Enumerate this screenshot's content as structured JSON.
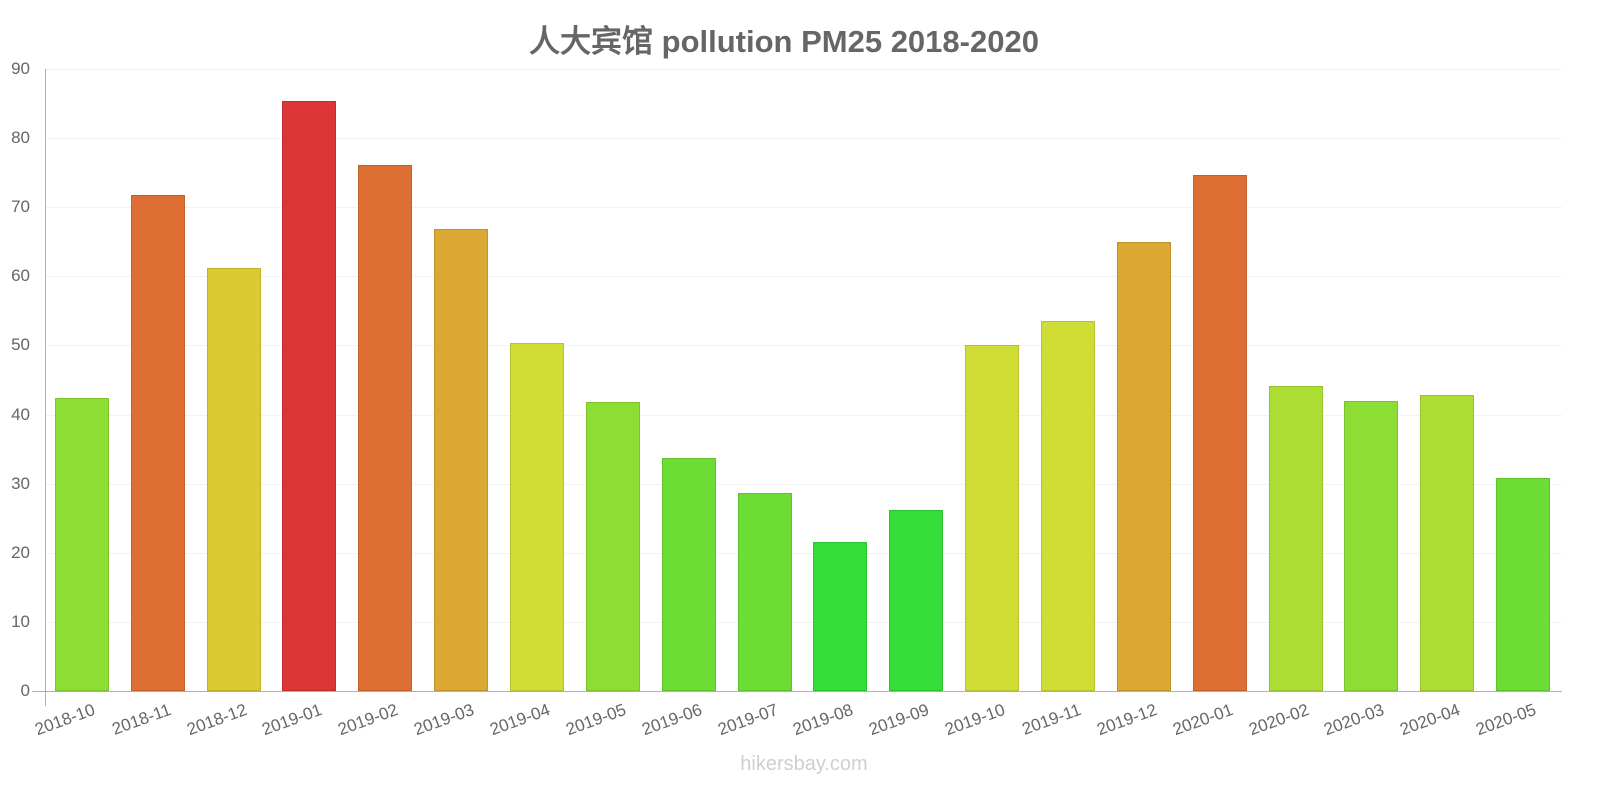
{
  "chart_data": {
    "type": "bar",
    "title": "人大宾馆 pollution PM25 2018-2020",
    "xlabel": "",
    "ylabel": "",
    "ylim": [
      0,
      90
    ],
    "yticks": [
      0,
      10,
      20,
      30,
      40,
      50,
      60,
      70,
      80,
      90
    ],
    "grid": true,
    "legend": null,
    "categories": [
      "2018-10",
      "2018-11",
      "2018-12",
      "2019-01",
      "2019-02",
      "2019-03",
      "2019-04",
      "2019-05",
      "2019-06",
      "2019-07",
      "2019-08",
      "2019-09",
      "2019-10",
      "2019-11",
      "2019-12",
      "2020-01",
      "2020-02",
      "2020-03",
      "2020-04",
      "2020-05"
    ],
    "values": [
      42.4,
      71.8,
      61.2,
      85.3,
      76.1,
      66.9,
      50.4,
      41.8,
      33.7,
      28.7,
      21.6,
      26.2,
      50.1,
      53.5,
      64.9,
      74.7,
      44.1,
      41.9,
      42.8,
      30.8
    ],
    "colors": [
      "#8cdd34",
      "#dd6f34",
      "#dbca33",
      "#dc3535",
      "#dd6f34",
      "#dca834",
      "#cfdd35",
      "#8cdd34",
      "#6bdd34",
      "#6bdd34",
      "#34dd37",
      "#34dd37",
      "#cfdd35",
      "#cfdd35",
      "#dca834",
      "#dd6f34",
      "#acdd34",
      "#8cdd34",
      "#acdd34",
      "#6bdd34"
    ]
  },
  "watermark": "hikersbay.com"
}
